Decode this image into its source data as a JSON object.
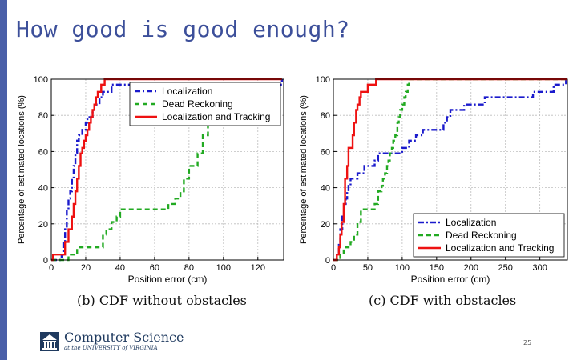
{
  "slide": {
    "title": "How good is good enough?",
    "page_number": "25",
    "accent_color": "#4a5fa8"
  },
  "captions": {
    "b": "(b)  CDF without obstacles",
    "c": "(c)  CDF with obstacles"
  },
  "logo": {
    "main": "Computer Science",
    "sub": "at the UNIVERSITY of VIRGINIA",
    "icon": "rotunda-icon"
  },
  "chart_data": [
    {
      "id": "b",
      "type": "line",
      "step": true,
      "xlabel": "Position error (cm)",
      "ylabel": "Percentage of estimated locations (%)",
      "xlim": [
        0,
        135
      ],
      "ylim": [
        0,
        100
      ],
      "xticks": [
        0,
        20,
        40,
        60,
        80,
        100,
        120
      ],
      "yticks": [
        0,
        20,
        40,
        60,
        80,
        100
      ],
      "grid": true,
      "legend_position": "top-right",
      "series": [
        {
          "name": "Localization",
          "color": "#1a1acc",
          "dash": "dashdot",
          "x": [
            0,
            4,
            6,
            7,
            8,
            9,
            10,
            11,
            12,
            13,
            14,
            15,
            16,
            18,
            19,
            20,
            21,
            22,
            24,
            25,
            26,
            28,
            30,
            32,
            35,
            40,
            45,
            134
          ],
          "y": [
            0,
            0,
            3,
            10,
            17,
            28,
            34,
            38,
            45,
            52,
            59,
            66,
            69,
            72,
            72,
            76,
            79,
            79,
            83,
            86,
            86,
            90,
            93,
            93,
            97,
            97,
            97,
            100
          ]
        },
        {
          "name": "Dead Reckoning",
          "color": "#22aa22",
          "dash": "dashed",
          "x": [
            0,
            5,
            10,
            15,
            25,
            30,
            32,
            35,
            38,
            40,
            65,
            68,
            72,
            75,
            77,
            80,
            85,
            88,
            91,
            93,
            95,
            97,
            100
          ],
          "y": [
            0,
            0,
            3,
            7,
            7,
            14,
            17,
            21,
            24,
            28,
            28,
            31,
            34,
            38,
            45,
            52,
            59,
            69,
            76,
            83,
            90,
            97,
            100
          ]
        },
        {
          "name": "Localization and Tracking",
          "color": "#ee1111",
          "dash": "solid",
          "x": [
            0,
            1,
            3,
            5,
            8,
            10,
            12,
            13,
            14,
            15,
            16,
            17,
            18,
            19,
            20,
            21,
            22,
            23,
            24,
            25,
            26,
            27,
            28,
            29,
            30,
            31,
            134
          ],
          "y": [
            0,
            3,
            3,
            3,
            10,
            17,
            24,
            31,
            38,
            45,
            52,
            59,
            62,
            66,
            69,
            72,
            76,
            79,
            83,
            86,
            90,
            93,
            93,
            97,
            97,
            100,
            100
          ]
        }
      ]
    },
    {
      "id": "c",
      "type": "line",
      "step": true,
      "xlabel": "Position error (cm)",
      "ylabel": "Percentage of estimated locations (%)",
      "xlim": [
        0,
        340
      ],
      "ylim": [
        0,
        100
      ],
      "xticks": [
        0,
        50,
        100,
        150,
        200,
        250,
        300
      ],
      "yticks": [
        0,
        20,
        40,
        60,
        80,
        100
      ],
      "grid": true,
      "legend_position": "bottom-right",
      "series": [
        {
          "name": "Localization",
          "color": "#1a1acc",
          "dash": "dashdot",
          "x": [
            0,
            5,
            8,
            10,
            13,
            16,
            18,
            20,
            22,
            25,
            28,
            30,
            35,
            40,
            45,
            55,
            60,
            65,
            70,
            75,
            90,
            100,
            105,
            110,
            115,
            120,
            125,
            130,
            140,
            145,
            160,
            165,
            170,
            180,
            190,
            200,
            210,
            220,
            230,
            240,
            280,
            290,
            300,
            320,
            330,
            338
          ],
          "y": [
            0,
            3,
            10,
            17,
            24,
            31,
            34,
            38,
            41,
            45,
            45,
            45,
            48,
            48,
            52,
            52,
            55,
            59,
            59,
            59,
            59,
            62,
            62,
            66,
            66,
            69,
            69,
            72,
            72,
            72,
            76,
            79,
            83,
            83,
            86,
            86,
            86,
            90,
            90,
            90,
            90,
            93,
            93,
            97,
            97,
            100
          ]
        },
        {
          "name": "Dead Reckoning",
          "color": "#22aa22",
          "dash": "dashed",
          "x": [
            0,
            10,
            15,
            20,
            25,
            30,
            35,
            40,
            55,
            60,
            65,
            70,
            72,
            75,
            78,
            80,
            82,
            85,
            87,
            90,
            93,
            95,
            97,
            100,
            103,
            105,
            108,
            110,
            340
          ],
          "y": [
            0,
            3,
            7,
            7,
            10,
            14,
            21,
            28,
            28,
            31,
            38,
            41,
            45,
            48,
            52,
            55,
            59,
            62,
            66,
            69,
            76,
            79,
            83,
            86,
            90,
            93,
            97,
            100,
            100
          ]
        },
        {
          "name": "Localization and Tracking",
          "color": "#ee1111",
          "dash": "solid",
          "x": [
            0,
            5,
            8,
            10,
            12,
            15,
            17,
            20,
            22,
            25,
            28,
            30,
            33,
            35,
            38,
            40,
            45,
            50,
            55,
            60,
            62,
            340
          ],
          "y": [
            0,
            3,
            7,
            14,
            21,
            31,
            45,
            52,
            62,
            62,
            69,
            76,
            83,
            86,
            90,
            93,
            93,
            97,
            97,
            97,
            100,
            100
          ]
        }
      ]
    }
  ]
}
